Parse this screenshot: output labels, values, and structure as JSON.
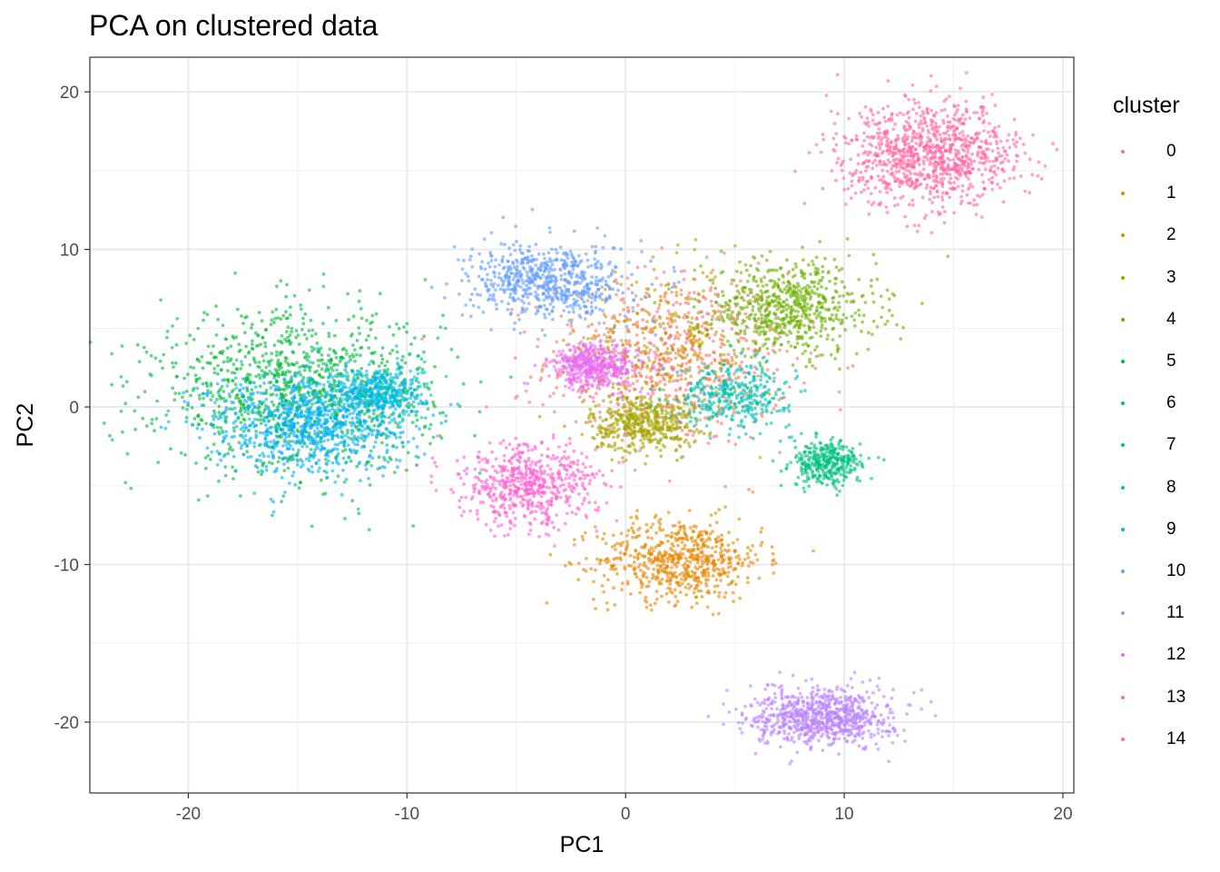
{
  "chart_data": {
    "type": "scatter",
    "title": "PCA on clustered data",
    "xlabel": "PC1",
    "ylabel": "PC2",
    "xlim": [
      -24.5,
      20.5
    ],
    "ylim": [
      -24.5,
      22.2
    ],
    "xticks": [
      -20,
      -10,
      0,
      10,
      20
    ],
    "yticks": [
      -20,
      -10,
      0,
      10,
      20
    ],
    "xtick_labels": [
      "-20",
      "-10",
      "0",
      "10",
      "20"
    ],
    "ytick_labels": [
      "-20",
      "-10",
      "0",
      "10",
      "20"
    ],
    "grid": true,
    "legend": {
      "title": "cluster",
      "position": "right"
    },
    "series": [
      {
        "name": "0",
        "color": "#F8766D",
        "center": [
          2.0,
          3.0
        ],
        "spread": [
          2.8,
          2.8
        ],
        "n": 700
      },
      {
        "name": "1",
        "color": "#E58700",
        "center": [
          2.5,
          -9.7
        ],
        "spread": [
          1.9,
          1.3
        ],
        "n": 650
      },
      {
        "name": "2",
        "color": "#C99800",
        "center": [
          2.0,
          4.0
        ],
        "spread": [
          2.0,
          2.5
        ],
        "n": 300
      },
      {
        "name": "3",
        "color": "#A3A500",
        "center": [
          0.8,
          -1.0
        ],
        "spread": [
          1.2,
          0.9
        ],
        "n": 450
      },
      {
        "name": "4",
        "color": "#6BB100",
        "center": [
          7.5,
          6.3
        ],
        "spread": [
          2.0,
          1.5
        ],
        "n": 650
      },
      {
        "name": "5",
        "color": "#00BA38",
        "center": [
          -15.0,
          1.0
        ],
        "spread": [
          3.2,
          2.5
        ],
        "n": 1100
      },
      {
        "name": "6",
        "color": "#00BF7D",
        "center": [
          9.2,
          -3.6
        ],
        "spread": [
          0.8,
          0.7
        ],
        "n": 350
      },
      {
        "name": "7",
        "color": "#00C0AF",
        "center": [
          5.0,
          0.8
        ],
        "spread": [
          1.3,
          1.0
        ],
        "n": 350
      },
      {
        "name": "8",
        "color": "#00BCD8",
        "center": [
          -11.2,
          0.9
        ],
        "spread": [
          1.0,
          0.9
        ],
        "n": 400
      },
      {
        "name": "9",
        "color": "#00B0F6",
        "center": [
          -14.5,
          -1.0
        ],
        "spread": [
          2.3,
          1.6
        ],
        "n": 900
      },
      {
        "name": "10",
        "color": "#619CFF",
        "center": [
          -3.5,
          8.0
        ],
        "spread": [
          1.8,
          1.2
        ],
        "n": 650
      },
      {
        "name": "11",
        "color": "#B983FF",
        "center": [
          9.0,
          -19.7
        ],
        "spread": [
          1.6,
          0.9
        ],
        "n": 800
      },
      {
        "name": "12",
        "color": "#E76BF3",
        "center": [
          -1.4,
          2.6
        ],
        "spread": [
          1.0,
          0.7
        ],
        "n": 450
      },
      {
        "name": "13",
        "color": "#FD61D1",
        "center": [
          -4.5,
          -5.0
        ],
        "spread": [
          1.6,
          1.3
        ],
        "n": 600
      },
      {
        "name": "14",
        "color": "#FF67A4",
        "center": [
          14.0,
          16.0
        ],
        "spread": [
          2.0,
          1.6
        ],
        "n": 1000
      }
    ]
  }
}
